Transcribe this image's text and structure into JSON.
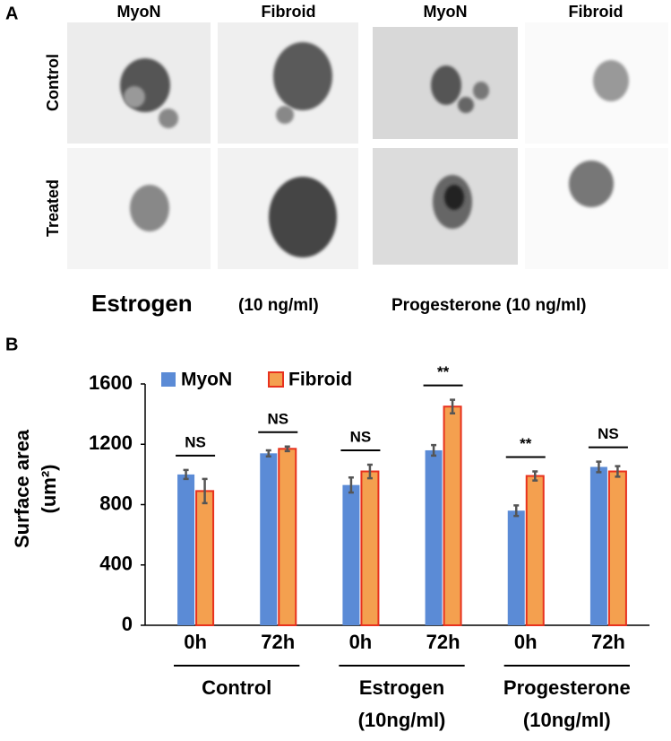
{
  "panel_a": {
    "label": "A",
    "column_headers": [
      "MyoN",
      "Fibroid",
      "MyoN",
      "Fibroid"
    ],
    "row_labels": [
      "Control",
      "Treated"
    ],
    "treatment_labels": {
      "estrogen": "Estrogen",
      "estrogen_dose": "(10 ng/ml)",
      "progesterone": "Progesterone (10 ng/ml)"
    }
  },
  "chart_data": {
    "type": "bar",
    "panel_label": "B",
    "y_label": [
      "Surface area",
      "(um²)"
    ],
    "categories": [
      "0h",
      "72h",
      "0h",
      "72h",
      "0h",
      "72h"
    ],
    "groups": [
      [
        "Control"
      ],
      [
        "Estrogen",
        "(10ng/ml)"
      ],
      [
        "Progesterone",
        "(10ng/ml)"
      ]
    ],
    "series": [
      {
        "name": "MyoN",
        "color": "#5b8bd6",
        "values": [
          1000,
          1140,
          930,
          1160,
          760,
          1050
        ],
        "errors": [
          30,
          20,
          50,
          35,
          35,
          35
        ]
      },
      {
        "name": "Fibroid",
        "color": "#f4a04f",
        "edge_color": "#e8321e",
        "values": [
          890,
          1170,
          1020,
          1450,
          990,
          1020
        ],
        "errors": [
          80,
          15,
          45,
          45,
          30,
          35
        ]
      }
    ],
    "significance": [
      "NS",
      "NS",
      "NS",
      "**",
      "**",
      "NS"
    ],
    "ylim": [
      0,
      1600
    ],
    "yticks": [
      0,
      400,
      800,
      1200,
      1600
    ],
    "grid": false,
    "legend": "upper left"
  }
}
